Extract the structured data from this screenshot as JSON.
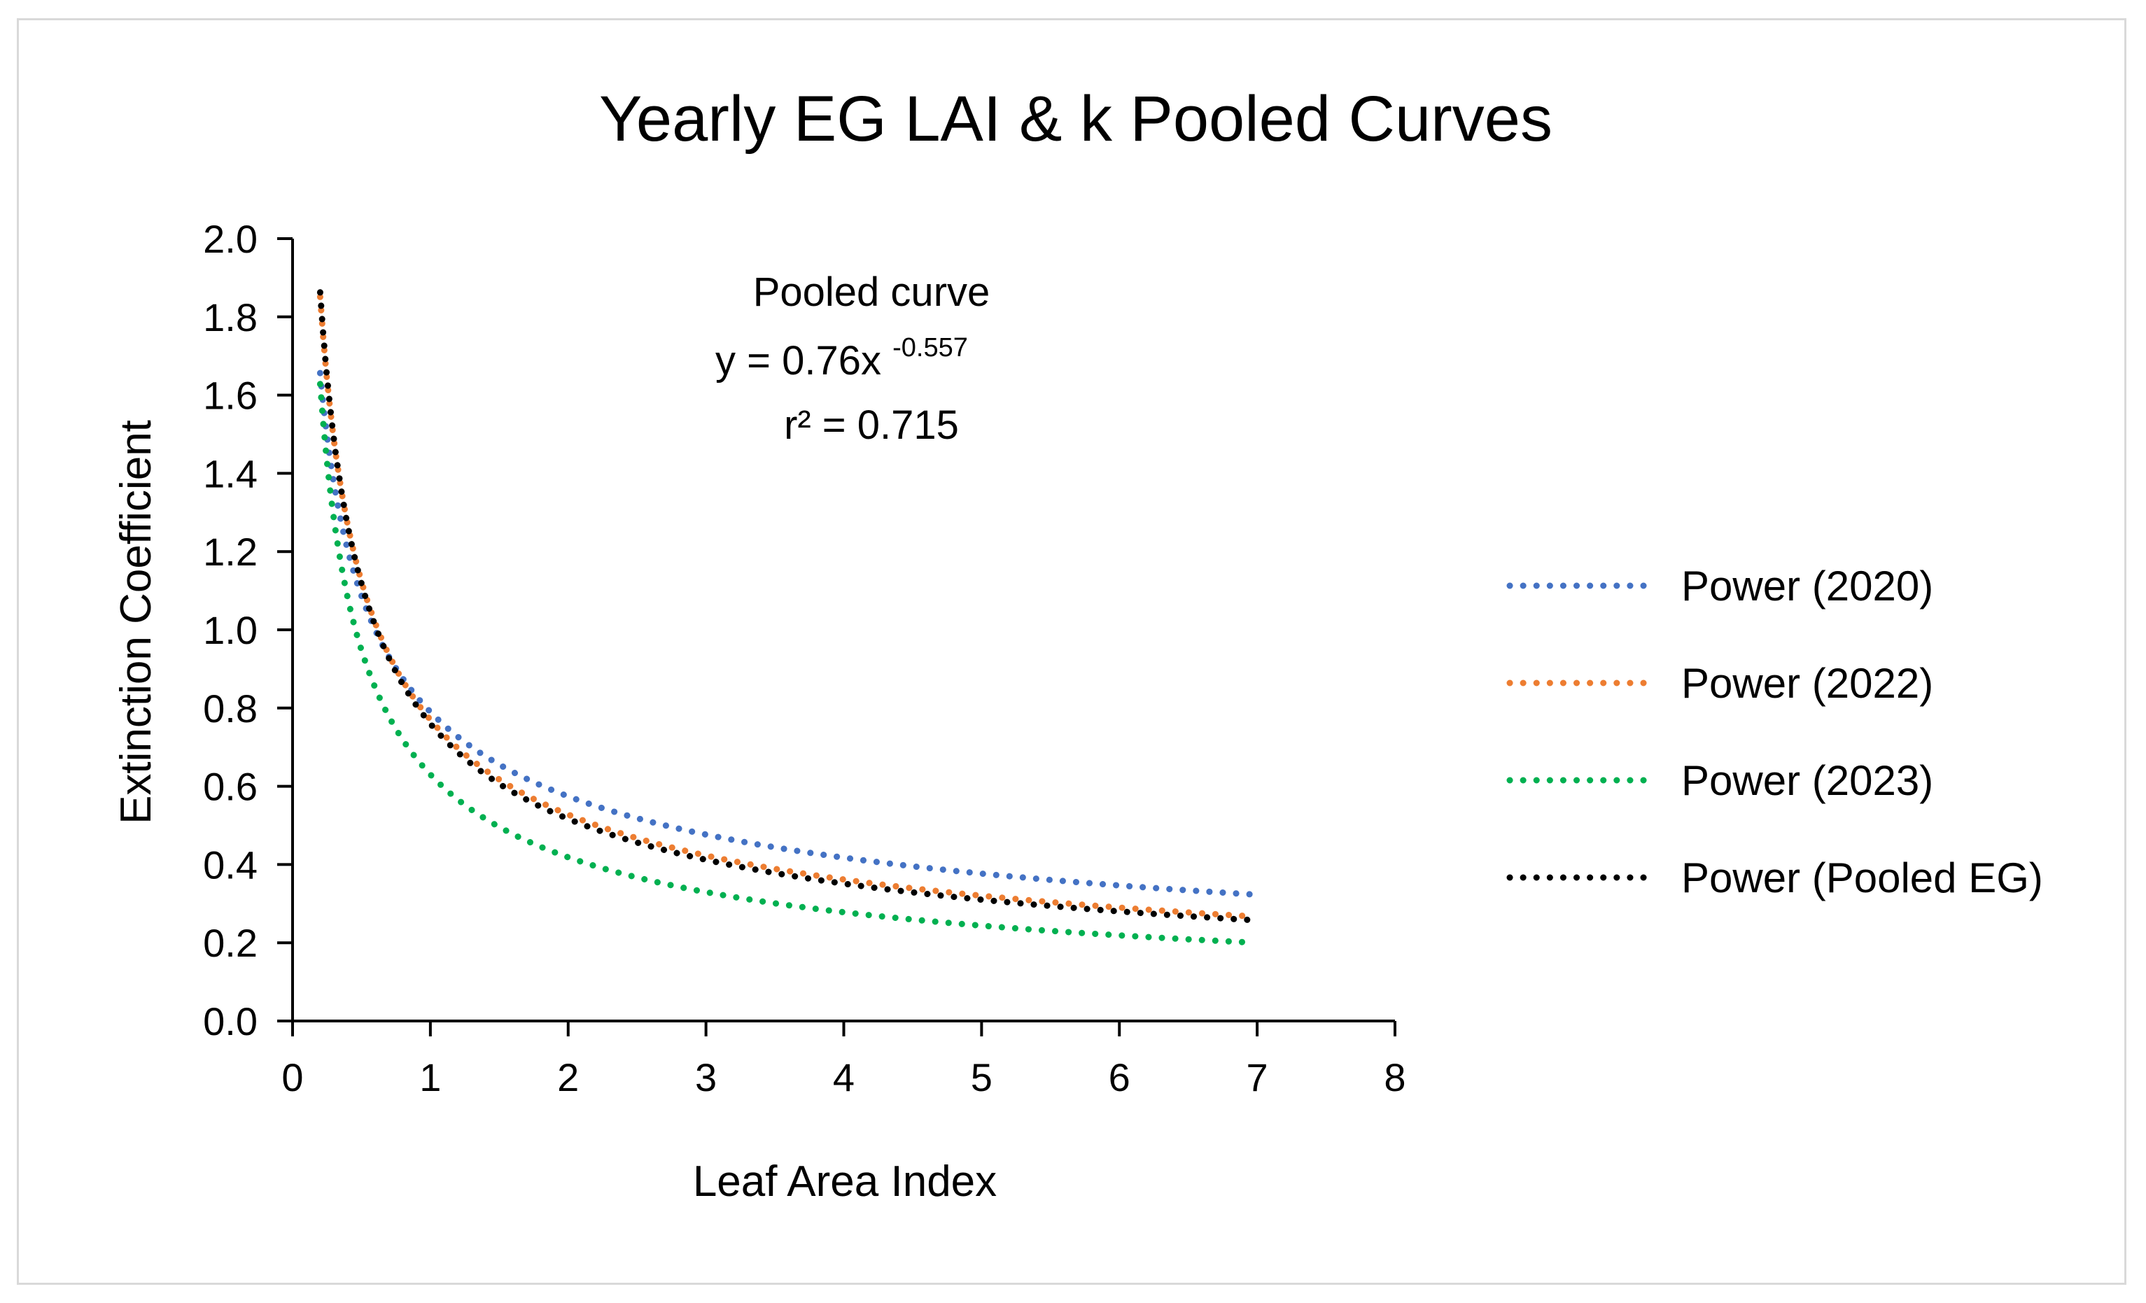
{
  "chart_data": {
    "type": "line",
    "title": "Yearly EG LAI & k Pooled Curves",
    "xlabel": "Leaf Area Index",
    "ylabel": "Extinction Coefficient",
    "xlim": [
      0,
      8
    ],
    "ylim": [
      0,
      2.0
    ],
    "x_ticks": [
      "0",
      "1",
      "2",
      "3",
      "4",
      "5",
      "6",
      "7",
      "8"
    ],
    "y_ticks": [
      "0.0",
      "0.2",
      "0.4",
      "0.6",
      "0.8",
      "1.0",
      "1.2",
      "1.4",
      "1.6",
      "1.8",
      "2.0"
    ],
    "grid": false,
    "legend_position": "right",
    "series": [
      {
        "name": "Power (2020)",
        "color": "#4472C4",
        "a": 0.79,
        "b": -0.46,
        "x_start": 0.2,
        "x_end": 7.0
      },
      {
        "name": "Power (2022)",
        "color": "#ED7D31",
        "a": 0.77,
        "b": -0.545,
        "x_start": 0.2,
        "x_end": 6.95
      },
      {
        "name": "Power (2023)",
        "color": "#00B050",
        "a": 0.63,
        "b": -0.59,
        "x_start": 0.2,
        "x_end": 6.9
      },
      {
        "name": "Power (Pooled EG)",
        "color": "#000000",
        "a": 0.76,
        "b": -0.557,
        "x_start": 0.2,
        "x_end": 6.95
      }
    ],
    "annotation": {
      "line1": "Pooled curve",
      "line2_prefix": "y = 0.76x",
      "line2_exponent": "-0.557",
      "line3": "r² = 0.715"
    }
  }
}
